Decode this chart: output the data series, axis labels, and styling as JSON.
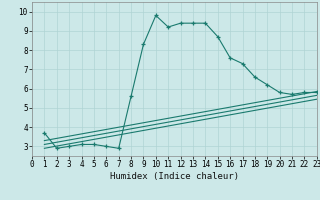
{
  "xlabel": "Humidex (Indice chaleur)",
  "xlim": [
    0,
    23
  ],
  "ylim": [
    2.5,
    10.5
  ],
  "yticks": [
    3,
    4,
    5,
    6,
    7,
    8,
    9,
    10
  ],
  "xticks": [
    0,
    1,
    2,
    3,
    4,
    5,
    6,
    7,
    8,
    9,
    10,
    11,
    12,
    13,
    14,
    15,
    16,
    17,
    18,
    19,
    20,
    21,
    22,
    23
  ],
  "background_color": "#cce8e8",
  "grid_color": "#b0d4d4",
  "line_color": "#1a7a6e",
  "main_curve_x": [
    1,
    2,
    3,
    4,
    5,
    6,
    7,
    8,
    9,
    10,
    11,
    12,
    13,
    14,
    15,
    16,
    17,
    18,
    19,
    20,
    21,
    22,
    23
  ],
  "main_curve_y": [
    3.7,
    2.9,
    3.0,
    3.1,
    3.1,
    3.0,
    2.9,
    5.6,
    8.3,
    9.8,
    9.2,
    9.4,
    9.4,
    9.4,
    8.7,
    7.6,
    7.3,
    6.6,
    6.2,
    5.8,
    5.7,
    5.8,
    5.8
  ],
  "line2_x": [
    1,
    23
  ],
  "line2_y": [
    3.3,
    5.85
  ],
  "line3_x": [
    1,
    23
  ],
  "line3_y": [
    3.1,
    5.65
  ],
  "line4_x": [
    1,
    23
  ],
  "line4_y": [
    2.9,
    5.45
  ]
}
